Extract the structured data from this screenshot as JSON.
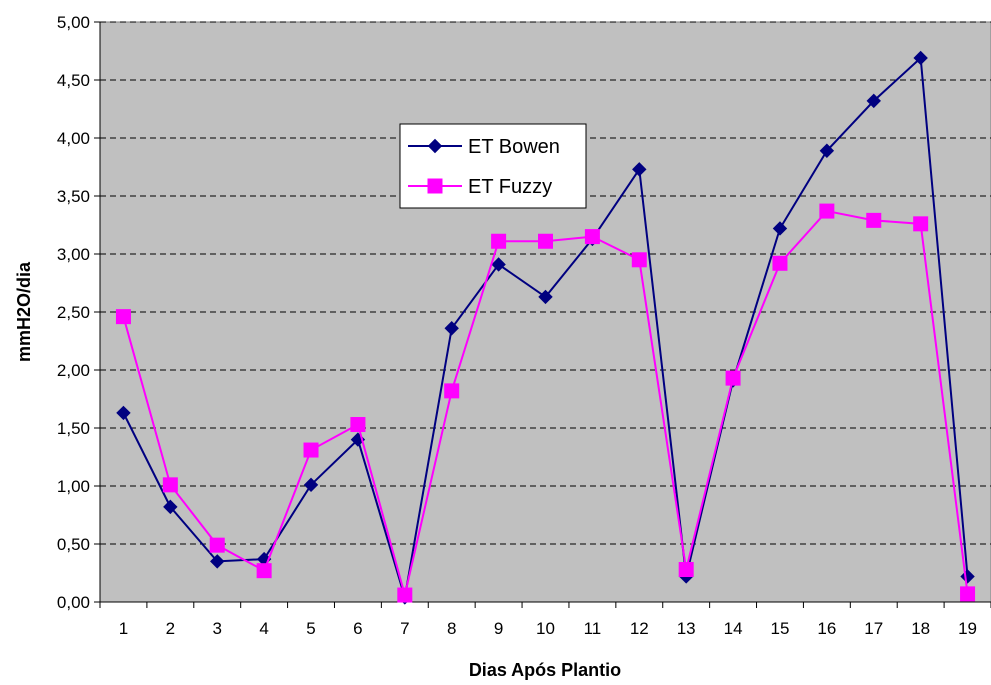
{
  "chart_data": {
    "type": "line",
    "title": "",
    "xlabel": "Dias Após Plantio",
    "ylabel": "mmH2O/dia",
    "ylim": [
      0,
      5
    ],
    "y_ticks": [
      "0,00",
      "0,50",
      "1,00",
      "1,50",
      "2,00",
      "2,50",
      "3,00",
      "3,50",
      "4,00",
      "4,50",
      "5,00"
    ],
    "categories": [
      "1",
      "2",
      "3",
      "4",
      "5",
      "6",
      "7",
      "8",
      "9",
      "10",
      "11",
      "12",
      "13",
      "14",
      "15",
      "16",
      "17",
      "18",
      "19"
    ],
    "grid": "horizontal dashed",
    "legend_position": "upper-middle",
    "plot_background": "#c0c0c0",
    "series": [
      {
        "name": "ET Bowen",
        "color": "#000080",
        "marker": "diamond",
        "values": [
          1.63,
          0.82,
          0.35,
          0.37,
          1.01,
          1.4,
          0.04,
          2.36,
          2.91,
          2.63,
          3.13,
          3.73,
          0.22,
          1.91,
          3.22,
          3.89,
          4.32,
          4.69,
          0.22
        ]
      },
      {
        "name": "ET Fuzzy",
        "color": "#ff00ff",
        "marker": "square",
        "values": [
          2.46,
          1.01,
          0.49,
          0.27,
          1.31,
          1.53,
          0.06,
          1.82,
          3.11,
          3.11,
          3.15,
          2.95,
          0.28,
          1.93,
          2.92,
          3.37,
          3.29,
          3.26,
          0.07
        ]
      }
    ]
  }
}
